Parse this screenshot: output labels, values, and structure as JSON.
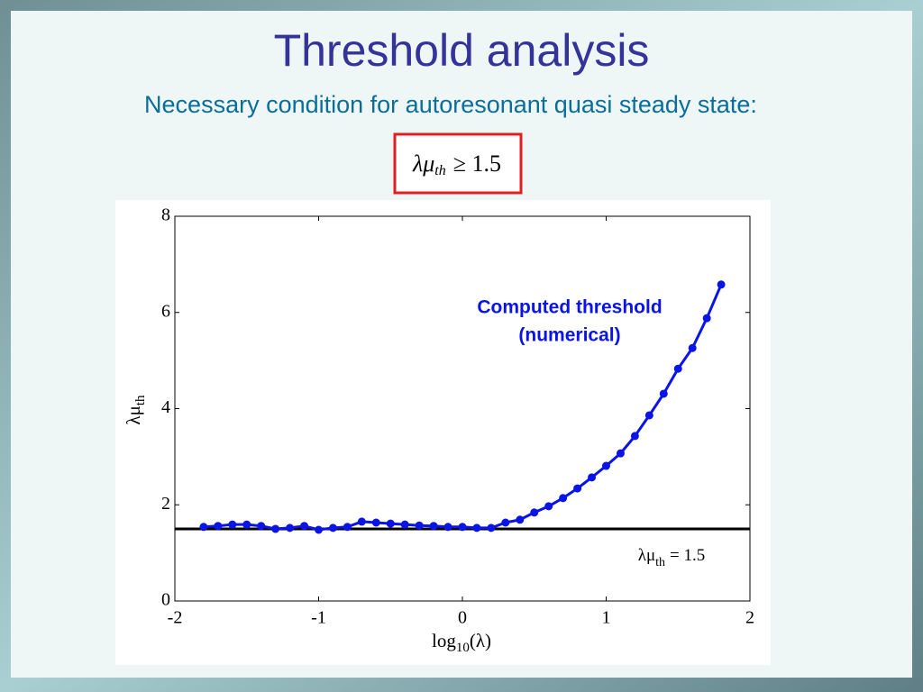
{
  "slide": {
    "title": "Threshold analysis",
    "subtitle": "Necessary condition for autoresonant quasi steady state:",
    "formula": {
      "lhs": "λμ",
      "sub": "th",
      "rhs": "≥ 1.5"
    }
  },
  "chart_data": {
    "type": "line",
    "xlabel": {
      "base": "log",
      "sub": "10",
      "rest": "(λ)"
    },
    "ylabel": {
      "base": "λμ",
      "sub": "th"
    },
    "annotation": [
      "Computed threshold",
      "(numerical)"
    ],
    "reference_line": {
      "value": 1.5,
      "color": "#000000",
      "label": {
        "base": "λμ",
        "sub": "th",
        "rest": "= 1.5"
      }
    },
    "x": [
      -1.8,
      -1.7,
      -1.6,
      -1.5,
      -1.4,
      -1.3,
      -1.2,
      -1.1,
      -1.0,
      -0.9,
      -0.8,
      -0.7,
      -0.6,
      -0.5,
      -0.4,
      -0.3,
      -0.2,
      -0.1,
      0.0,
      0.1,
      0.2,
      0.3,
      0.4,
      0.5,
      0.6,
      0.7,
      0.8,
      0.9,
      1.0,
      1.1,
      1.2,
      1.3,
      1.4,
      1.5,
      1.6,
      1.7,
      1.8
    ],
    "series": [
      {
        "color": "#0a14e6",
        "values": [
          1.54,
          1.56,
          1.59,
          1.59,
          1.56,
          1.5,
          1.52,
          1.56,
          1.48,
          1.52,
          1.54,
          1.65,
          1.63,
          1.61,
          1.59,
          1.57,
          1.56,
          1.54,
          1.54,
          1.52,
          1.52,
          1.63,
          1.69,
          1.84,
          1.97,
          2.14,
          2.34,
          2.57,
          2.81,
          3.07,
          3.43,
          3.86,
          4.31,
          4.83,
          5.26,
          5.88,
          6.58
        ]
      }
    ],
    "xlim": [
      -2,
      2
    ],
    "xticks": [
      -2,
      -1,
      0,
      1,
      2
    ],
    "ylim": [
      0,
      8
    ],
    "yticks": [
      0,
      2,
      4,
      6,
      8
    ],
    "grid": false
  }
}
